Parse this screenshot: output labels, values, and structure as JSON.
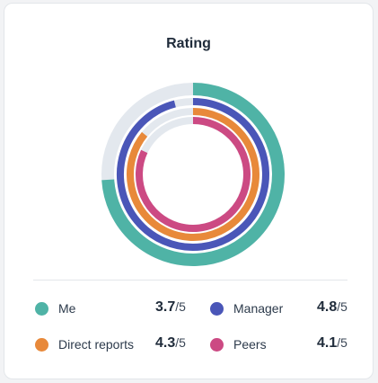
{
  "card": {
    "title": "Rating"
  },
  "chart_data": {
    "type": "radial-bar",
    "title": "Rating",
    "max": 5,
    "track_color": "#e3e8ee",
    "series": [
      {
        "name": "Me",
        "value": 3.7,
        "color": "#4fb3a6"
      },
      {
        "name": "Manager",
        "value": 4.8,
        "color": "#4a56b8"
      },
      {
        "name": "Direct reports",
        "value": 4.3,
        "color": "#e8893a"
      },
      {
        "name": "Peers",
        "value": 4.1,
        "color": "#cc4a83"
      }
    ]
  },
  "legend": [
    {
      "name": "Me",
      "value": "3.7",
      "max": "/5"
    },
    {
      "name": "Manager",
      "value": "4.8",
      "max": "/5"
    },
    {
      "name": "Direct reports",
      "value": "4.3",
      "max": "/5"
    },
    {
      "name": "Peers",
      "value": "4.1",
      "max": "/5"
    }
  ]
}
